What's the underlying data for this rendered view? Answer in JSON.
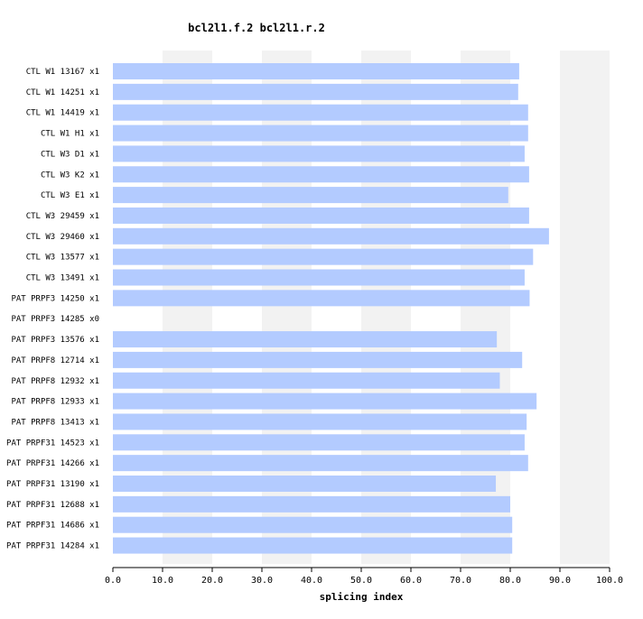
{
  "chart_data": {
    "type": "bar",
    "orientation": "horizontal",
    "title": "bcl2l1.f.2  bcl2l1.r.2",
    "xlabel": "splicing index",
    "xlim": [
      0,
      100
    ],
    "xticks": [
      "0.0",
      "10.0",
      "20.0",
      "30.0",
      "40.0",
      "50.0",
      "60.0",
      "70.0",
      "80.0",
      "90.0",
      "100.0"
    ],
    "categories": [
      "CTL W1 13167 x1",
      "CTL W1 14251 x1",
      "CTL W1 14419 x1",
      "CTL W1 H1 x1",
      "CTL W3 D1 x1",
      "CTL W3 K2 x1",
      "CTL W3 E1 x1",
      "CTL W3 29459 x1",
      "CTL W3 29460 x1",
      "CTL W3 13577 x1",
      "CTL W3 13491 x1",
      "PAT PRPF3 14250 x1",
      "PAT PRPF3 14285 x0",
      "PAT PRPF3 13576 x1",
      "PAT PRPF8 12714 x1",
      "PAT PRPF8 12932 x1",
      "PAT PRPF8 12933 x1",
      "PAT PRPF8 13413 x1",
      "PAT PRPF31 14523 x1",
      "PAT PRPF31 14266 x1",
      "PAT PRPF31 13190 x1",
      "PAT PRPF31 12688 x1",
      "PAT PRPF31 14686 x1",
      "PAT PRPF31 14284 x1"
    ],
    "values": [
      81.8,
      81.6,
      83.6,
      83.6,
      82.9,
      83.8,
      79.6,
      83.8,
      87.8,
      84.6,
      82.9,
      83.9,
      null,
      77.3,
      82.4,
      77.9,
      85.3,
      83.3,
      82.9,
      83.6,
      77.1,
      80.0,
      80.4,
      80.4
    ],
    "grid": "alternating vertical bands",
    "colors": {
      "bar": "#b3cbff",
      "band": "#f2f2f2",
      "axis": "#000000"
    }
  }
}
